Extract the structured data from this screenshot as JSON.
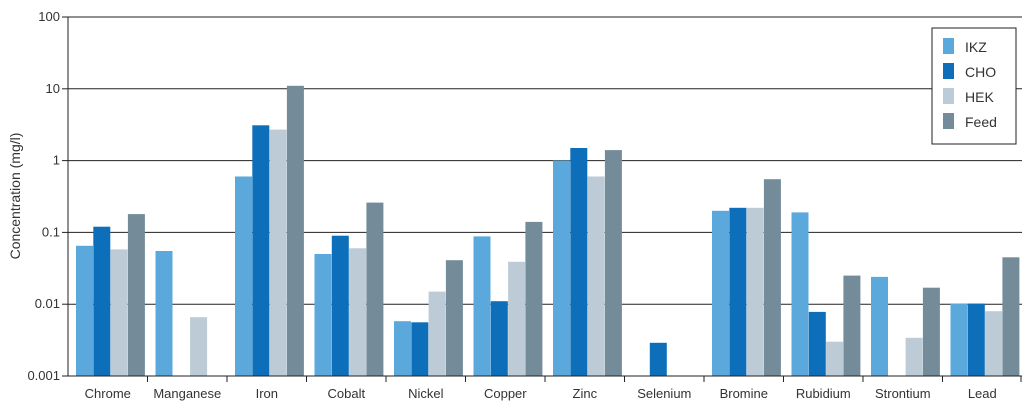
{
  "chart_data": {
    "type": "bar",
    "title": "",
    "xlabel": "",
    "ylabel": "Concentration (mg/l)",
    "yscale": "log",
    "ylim": [
      0.001,
      100
    ],
    "yticks": [
      "0.001",
      "0.01",
      "0.1",
      "1",
      "10",
      "100"
    ],
    "grid": "horizontal",
    "legend_position": "top-right",
    "categories": [
      "Chrome",
      "Manganese",
      "Iron",
      "Cobalt",
      "Nickel",
      "Copper",
      "Zinc",
      "Selenium",
      "Bromine",
      "Rubidium",
      "Strontium",
      "Lead"
    ],
    "series": [
      {
        "name": "IKZ",
        "color": "#5aa8dc",
        "values": [
          0.065,
          0.055,
          0.6,
          0.05,
          0.0058,
          0.088,
          1.0,
          null,
          0.2,
          0.19,
          0.024,
          0.0102
        ]
      },
      {
        "name": "CHO",
        "color": "#0d6fba",
        "values": [
          0.12,
          null,
          3.1,
          0.09,
          0.0056,
          0.011,
          1.5,
          0.0029,
          0.22,
          0.0078,
          null,
          0.0102
        ]
      },
      {
        "name": "HEK",
        "color": "#bccbd6",
        "values": [
          0.058,
          0.0066,
          2.7,
          0.06,
          0.015,
          0.039,
          0.6,
          null,
          0.22,
          0.003,
          0.0034,
          0.008
        ]
      },
      {
        "name": "Feed",
        "color": "#748c9a",
        "values": [
          0.18,
          null,
          11.0,
          0.26,
          0.041,
          0.14,
          1.4,
          null,
          0.55,
          0.025,
          0.017,
          0.045
        ]
      }
    ]
  }
}
